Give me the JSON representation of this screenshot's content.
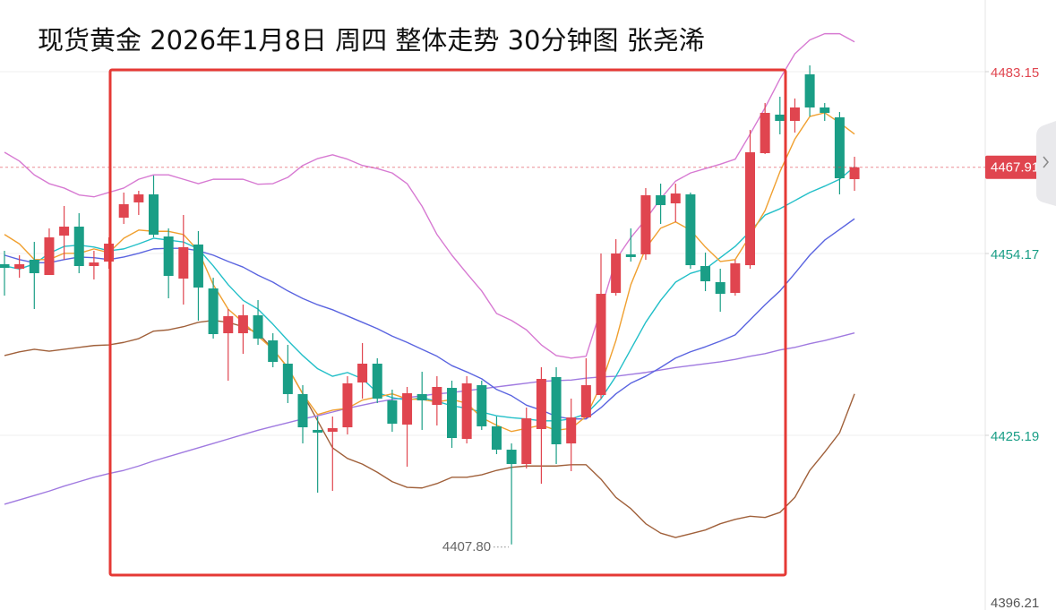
{
  "chart_data": {
    "type": "candlestick",
    "title": "现货黄金 2026年1月8日 周四 整体走势 30分钟图  张尧浠",
    "open": [
      4452.46,
      4451.74,
      4453.17,
      4450.74,
      4457.02,
      4458.45,
      4452.17,
      4452.88,
      4459.88,
      4462.31,
      4463.59,
      4456.88,
      4450.17,
      4455.6,
      4448.6,
      4441.46,
      4441.46,
      4444.32,
      4440.32,
      4436.61,
      4431.76,
      4426.05,
      4425.76,
      4426.47,
      4433.61,
      4436.61,
      4430.76,
      4426.9,
      4431.76,
      4430.04,
      4432.75,
      4424.62,
      4433.18,
      4426.62,
      4422.9,
      4420.62,
      4426.19,
      4434.47,
      4423.9,
      4428.04,
      4431.61,
      4447.89,
      4454.03,
      4454.03,
      4463.45,
      4462.16,
      4463.59,
      4452.17,
      4449.6,
      4447.89,
      4452.31,
      4470.16,
      4476.3,
      4475.3,
      4482.72,
      4477.44,
      4475.87,
      4466.02
    ],
    "high": [
      4454.6,
      4453.88,
      4456.02,
      4458.17,
      4461.74,
      4460.59,
      4454.6,
      4456.74,
      4463.88,
      4464.16,
      4466.59,
      4458.17,
      4460.31,
      4457.74,
      4450.31,
      4445.32,
      4446.03,
      4446.75,
      4441.46,
      4439.61,
      4433.18,
      4428.19,
      4428.19,
      4434.61,
      4439.89,
      4437.47,
      4432.47,
      4432.9,
      4435.32,
      4434.61,
      4433.9,
      4434.61,
      4433.9,
      4428.19,
      4423.9,
      4429.61,
      4436.04,
      4436.04,
      4431.04,
      4437.47,
      4454.17,
      4456.45,
      4458.17,
      4464.59,
      4465.3,
      4465.3,
      4463.88,
      4454.31,
      4451.74,
      4453.17,
      4473.87,
      4478.15,
      4479.15,
      4478.87,
      4484.15,
      4478.15,
      4476.72,
      4469.59
    ],
    "low": [
      4447.46,
      4450.31,
      4445.32,
      4450.74,
      4453.17,
      4451.03,
      4450.03,
      4451.74,
      4458.88,
      4460.31,
      4456.74,
      4447.03,
      4446.03,
      4443.46,
      4440.61,
      4433.9,
      4438.18,
      4439.61,
      4436.04,
      4430.33,
      4423.9,
      4416.05,
      4416.34,
      4425.33,
      4431.04,
      4430.33,
      4425.76,
      4420.19,
      4426.05,
      4426.76,
      4423.19,
      4423.9,
      4426.05,
      4422.19,
      4407.8,
      4419.91,
      4417.48,
      4420.62,
      4419.48,
      4427.9,
      4431.04,
      4447.46,
      4452.88,
      4453.17,
      4458.88,
      4459.17,
      4451.74,
      4448.17,
      4444.89,
      4447.46,
      4451.74,
      4470.02,
      4473.16,
      4473.44,
      4476.01,
      4475.3,
      4463.59,
      4464.16
    ],
    "close": [
      4451.88,
      4452.46,
      4451.03,
      4456.74,
      4458.45,
      4452.17,
      4452.74,
      4455.74,
      4462.02,
      4463.59,
      4457.17,
      4450.6,
      4455.17,
      4448.74,
      4441.32,
      4444.18,
      4444.32,
      4440.61,
      4436.89,
      4431.76,
      4426.47,
      4425.62,
      4426.33,
      4433.47,
      4436.61,
      4431.04,
      4427.04,
      4431.9,
      4430.76,
      4432.9,
      4424.76,
      4433.47,
      4426.62,
      4422.9,
      4420.62,
      4427.9,
      4434.18,
      4423.76,
      4428.04,
      4433.18,
      4447.74,
      4454.17,
      4453.6,
      4463.45,
      4461.88,
      4463.73,
      4452.31,
      4449.74,
      4447.74,
      4452.6,
      4470.3,
      4476.58,
      4475.3,
      4477.44,
      4477.44,
      4476.58,
      4466.16,
      4467.91
    ],
    "up_color": "#e0454f",
    "down_color": "#1a9e86",
    "overlays": [
      {
        "color": "#d77ad2",
        "values": [
          4470.3,
          4468.9,
          4466.7,
          4465.3,
          4464.6,
          4463.5,
          4463.2,
          4463.9,
          4464.6,
          4466.0,
          4466.7,
          4466.7,
          4466.0,
          4465.3,
          4466.0,
          4466.0,
          4466.0,
          4465.2,
          4465.3,
          4466.3,
          4468.2,
          4469.3,
          4469.9,
          4469.2,
          4468.2,
          4467.7,
          4467.0,
          4465.3,
          4461.7,
          4457.2,
          4453.9,
          4451.0,
          4448.2,
          4444.6,
          4443.5,
          4442.0,
          4439.6,
          4437.9,
          4437.5,
          4437.8,
          4445.3,
          4453.2,
          4456.7,
          4459.6,
          4462.9,
          4465.7,
          4467.0,
          4467.7,
          4468.4,
          4469.2,
          4473.2,
          4477.4,
          4482.0,
          4486.0,
          4488.2,
          4489.2,
          4489.2,
          4487.9
        ]
      },
      {
        "color": "#a0603a",
        "values": [
          4437.9,
          4438.5,
          4438.9,
          4438.6,
          4438.9,
          4439.2,
          4439.5,
          4439.6,
          4440.0,
          4440.6,
          4441.8,
          4442.0,
          4442.5,
          4443.2,
          4443.5,
          4443.2,
          4442.5,
          4441.5,
          4438.9,
          4436.0,
          4431.8,
          4427.5,
          4423.2,
          4421.5,
          4420.6,
          4419.3,
          4417.8,
          4416.9,
          4416.8,
          4417.5,
          4418.5,
          4418.5,
          4418.9,
          4419.6,
          4420.1,
          4420.3,
          4420.3,
          4420.3,
          4420.5,
          4420.5,
          4418.2,
          4415.3,
          4413.5,
          4411.1,
          4409.6,
          4408.9,
          4409.5,
          4410.1,
          4411.1,
          4411.8,
          4412.3,
          4412.1,
          4412.9,
          4415.3,
          4419.6,
          4422.5,
          4425.6,
          4431.8
        ]
      },
      {
        "color": "#a07ae0",
        "values": [
          4414.2,
          4414.9,
          4415.6,
          4416.3,
          4417.1,
          4417.8,
          4418.5,
          4419.1,
          4419.6,
          4420.3,
          4421.1,
          4421.8,
          4422.5,
          4423.2,
          4423.9,
          4424.6,
          4425.3,
          4426.0,
          4426.6,
          4427.2,
          4427.8,
          4428.3,
          4428.9,
          4429.5,
          4430.0,
          4430.5,
          4430.9,
          4431.2,
          4431.5,
          4431.8,
          4432.0,
          4432.3,
          4432.6,
          4432.9,
          4433.2,
          4433.5,
          4433.8,
          4433.9,
          4434.0,
          4434.3,
          4434.5,
          4434.6,
          4434.9,
          4435.2,
          4435.6,
          4436.0,
          4436.3,
          4436.6,
          4436.9,
          4437.3,
          4437.8,
          4438.2,
          4438.8,
          4439.2,
          4439.8,
          4440.3,
          4440.9,
          4441.5
        ]
      },
      {
        "color": "#5a64e0",
        "values": [
          4453.9,
          4453.2,
          4452.7,
          4452.7,
          4453.2,
          4453.6,
          4453.5,
          4453.2,
          4453.6,
          4454.2,
          4454.9,
          4455.0,
          4455.0,
          4454.6,
          4453.9,
          4452.9,
          4452.0,
          4450.7,
          4449.6,
          4448.2,
          4447.0,
          4446.0,
          4445.2,
          4444.2,
          4443.2,
          4442.2,
          4441.0,
          4440.0,
          4438.9,
          4437.8,
          4436.3,
          4435.3,
          4434.2,
          4432.5,
          4431.5,
          4430.0,
          4429.2,
          4428.2,
          4427.8,
          4427.8,
          4429.6,
          4431.8,
          4433.5,
          4434.6,
          4436.0,
          4437.5,
          4438.5,
          4439.3,
          4440.2,
          4441.2,
          4443.6,
          4446.0,
          4448.2,
          4451.0,
          4453.9,
          4456.3,
          4458.0,
          4459.7
        ]
      },
      {
        "color": "#22bfc8",
        "values": [
          4452.2,
          4451.7,
          4452.5,
          4454.2,
          4455.3,
          4455.5,
          4455.2,
          4454.6,
          4454.9,
          4455.7,
          4456.6,
          4456.3,
          4456.0,
          4454.9,
          4452.2,
          4449.2,
          4446.7,
          4445.3,
          4442.9,
          4440.3,
          4437.9,
          4435.8,
          4434.6,
          4435.2,
          4434.2,
          4432.0,
          4431.2,
          4430.8,
          4431.2,
          4430.6,
          4429.9,
          4429.5,
          4428.9,
          4428.3,
          4428.0,
          4427.8,
          4427.5,
          4427.5,
          4427.8,
          4428.6,
          4431.0,
          4434.6,
          4438.9,
          4443.2,
          4446.7,
          4449.6,
          4451.0,
          4451.7,
          4453.5,
          4455.3,
          4457.7,
          4460.3,
          4461.3,
          4462.6,
          4463.9,
          4464.9,
          4466.0,
          4468.0
        ]
      },
      {
        "color": "#f0a030",
        "values": [
          4457.2,
          4455.7,
          4453.2,
          4453.2,
          4454.2,
          4454.2,
          4454.9,
          4454.3,
          4456.6,
          4457.9,
          4457.7,
          4457.7,
          4457.2,
          4454.6,
          4449.2,
          4445.3,
          4443.2,
          4441.0,
          4438.9,
          4436.0,
          4431.8,
          4428.5,
          4429.2,
          4429.5,
          4430.8,
          4431.3,
          4431.8,
          4431.0,
          4430.9,
          4430.5,
          4430.9,
          4430.3,
          4428.0,
          4426.8,
          4425.8,
          4426.3,
          4426.8,
          4426.0,
          4426.3,
          4428.2,
          4433.2,
          4440.3,
          4449.2,
          4455.0,
          4458.2,
          4459.2,
          4457.9,
          4455.2,
          4452.9,
          4453.2,
          4457.0,
          4461.0,
          4467.2,
          4472.4,
          4476.0,
          4476.6,
          4475.0,
          4473.2
        ]
      }
    ],
    "ylim": [
      4397.35,
      4494.57
    ],
    "yticks": [
      4396.21,
      4425.19,
      4454.17,
      4483.15
    ],
    "ytick_colors": [
      "#555555",
      "#1a9e86",
      "#1a9e86",
      "#e0454f"
    ],
    "grid": true,
    "current_price": 4467.91,
    "current_price_color": "#e0454f",
    "annotations": [
      {
        "value": 4407.8,
        "label": "4407.80"
      }
    ]
  }
}
